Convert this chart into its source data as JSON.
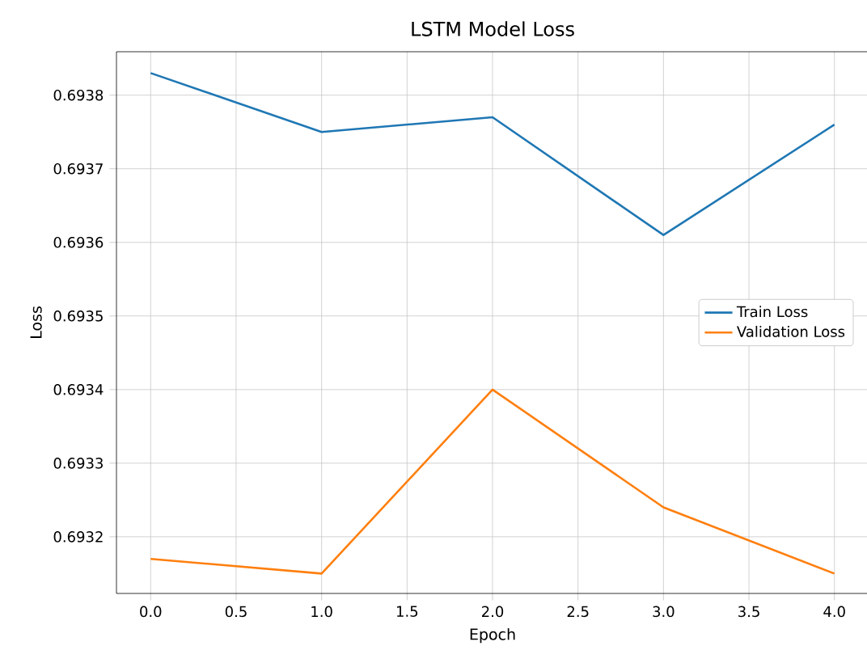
{
  "chart_data": {
    "type": "line",
    "title": "LSTM Model Loss",
    "xlabel": "Epoch",
    "ylabel": "Loss",
    "x": [
      0,
      1,
      2,
      3,
      4
    ],
    "series": [
      {
        "name": "Train Loss",
        "color": "#1f77b4",
        "values": [
          0.69383,
          0.69375,
          0.69377,
          0.69361,
          0.69376
        ]
      },
      {
        "name": "Validation Loss",
        "color": "#ff7f0e",
        "values": [
          0.69317,
          0.69315,
          0.6934,
          0.69324,
          0.69315
        ]
      }
    ],
    "xlim": [
      -0.2,
      4.2
    ],
    "ylim": [
      0.693123,
      0.693859
    ],
    "xticks": [
      {
        "value": 0,
        "label": "0.0"
      },
      {
        "value": 0.5,
        "label": "0.5"
      },
      {
        "value": 1,
        "label": "1.0"
      },
      {
        "value": 1.5,
        "label": "1.5"
      },
      {
        "value": 2,
        "label": "2.0"
      },
      {
        "value": 2.5,
        "label": "2.5"
      },
      {
        "value": 3,
        "label": "3.0"
      },
      {
        "value": 3.5,
        "label": "3.5"
      },
      {
        "value": 4,
        "label": "4.0"
      }
    ],
    "yticks": [
      0.6932,
      0.6933,
      0.6934,
      0.6935,
      0.6936,
      0.6937,
      0.6938
    ],
    "grid": true,
    "legend": "right",
    "marker": "none",
    "line_style": "solid"
  }
}
